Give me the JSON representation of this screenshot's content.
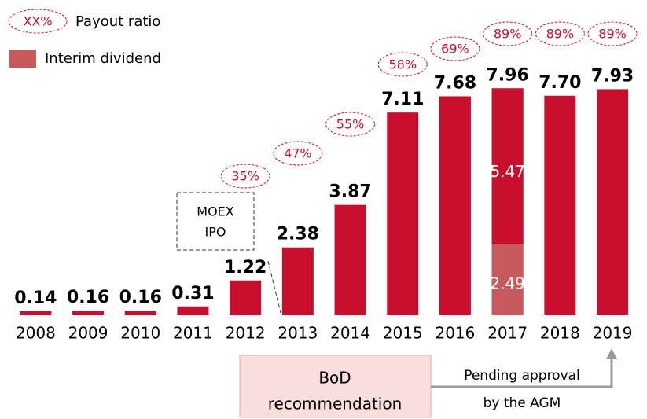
{
  "chart_data": {
    "type": "bar",
    "categories": [
      "2008",
      "2009",
      "2010",
      "2011",
      "2012",
      "2013",
      "2014",
      "2015",
      "2016",
      "2017",
      "2018",
      "2019"
    ],
    "values": [
      0.14,
      0.16,
      0.16,
      0.31,
      1.22,
      2.38,
      3.87,
      7.11,
      7.68,
      7.96,
      7.7,
      7.93
    ],
    "value_labels": [
      "0.14",
      "0.16",
      "0.16",
      "0.31",
      "1.22",
      "2.38",
      "3.87",
      "7.11",
      "7.68",
      "7.96",
      "7.70",
      "7.93"
    ],
    "color": "#c8102e",
    "ylim": [
      0,
      8.3
    ],
    "interim": {
      "name": "Interim dividend",
      "color": "#c85a5e",
      "values": [
        null,
        null,
        null,
        null,
        null,
        null,
        null,
        null,
        null,
        2.49,
        null,
        null
      ]
    },
    "final": {
      "color": "#c8102e",
      "values": [
        null,
        null,
        null,
        null,
        null,
        null,
        null,
        null,
        null,
        5.47,
        null,
        null
      ]
    },
    "payout_ratio": {
      "name": "Payout ratio",
      "legend_symbol": "XX%",
      "color": "#c8102e",
      "values": [
        null,
        null,
        null,
        null,
        35,
        47,
        55,
        58,
        69,
        89,
        89,
        89
      ],
      "value_labels": [
        null,
        null,
        null,
        null,
        "35%",
        "47%",
        "55%",
        "58%",
        "69%",
        "89%",
        "89%",
        "89%"
      ]
    },
    "annotations": {
      "ipo": [
        "MOEX",
        "IPO"
      ],
      "bod": [
        "BoD",
        "recommendation"
      ],
      "agm": [
        "Pending approval",
        "by the AGM"
      ]
    }
  }
}
